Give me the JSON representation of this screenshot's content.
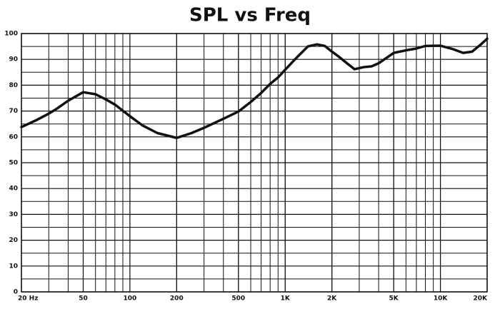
{
  "chart_data": {
    "type": "line",
    "title": "SPL vs Freq",
    "x": [
      20,
      25,
      30,
      34,
      40,
      50,
      60,
      70,
      80,
      100,
      120,
      150,
      200,
      250,
      300,
      400,
      500,
      600,
      700,
      800,
      900,
      1000,
      1200,
      1400,
      1600,
      1800,
      2000,
      2200,
      2500,
      2800,
      3200,
      3600,
      4000,
      5000,
      6000,
      7000,
      8000,
      10000,
      12000,
      14000,
      16000,
      18000,
      20000
    ],
    "series": [
      {
        "name": "SPL",
        "color": "#111111",
        "values": [
          63.8,
          66.5,
          69,
          71,
          74,
          77.3,
          76.5,
          74.5,
          72.5,
          68,
          64.5,
          61.5,
          59.6,
          61.5,
          63.5,
          67,
          69.8,
          73.5,
          77,
          80.5,
          83,
          86,
          91,
          95,
          95.8,
          95.2,
          93,
          91.2,
          88.5,
          86.2,
          87,
          87.3,
          88.5,
          92.5,
          93.5,
          94.2,
          95.2,
          95.3,
          94,
          92.5,
          93,
          95.5,
          98
        ]
      }
    ],
    "xscale": "log",
    "xlim": [
      20,
      20000
    ],
    "ylim": [
      0,
      100
    ],
    "xticks": [
      {
        "value": 20,
        "label": "20  Hz"
      },
      50,
      100,
      200,
      500,
      {
        "value": 1000,
        "label": "1K"
      },
      {
        "value": 2000,
        "label": "2K"
      },
      {
        "value": 5000,
        "label": "5K"
      },
      {
        "value": 10000,
        "label": "10K"
      },
      {
        "value": 20000,
        "label": "20K"
      }
    ],
    "yticks": [
      0,
      10,
      20,
      30,
      40,
      50,
      60,
      70,
      80,
      90,
      100
    ],
    "x_gridlines": [
      20,
      30,
      40,
      50,
      60,
      70,
      80,
      90,
      100,
      200,
      300,
      400,
      500,
      600,
      700,
      800,
      900,
      1000,
      2000,
      3000,
      4000,
      5000,
      6000,
      7000,
      8000,
      9000,
      10000,
      20000
    ],
    "y_gridlines": [
      5,
      15,
      25,
      35,
      45,
      55,
      65,
      75,
      85,
      95
    ],
    "grid": true
  }
}
